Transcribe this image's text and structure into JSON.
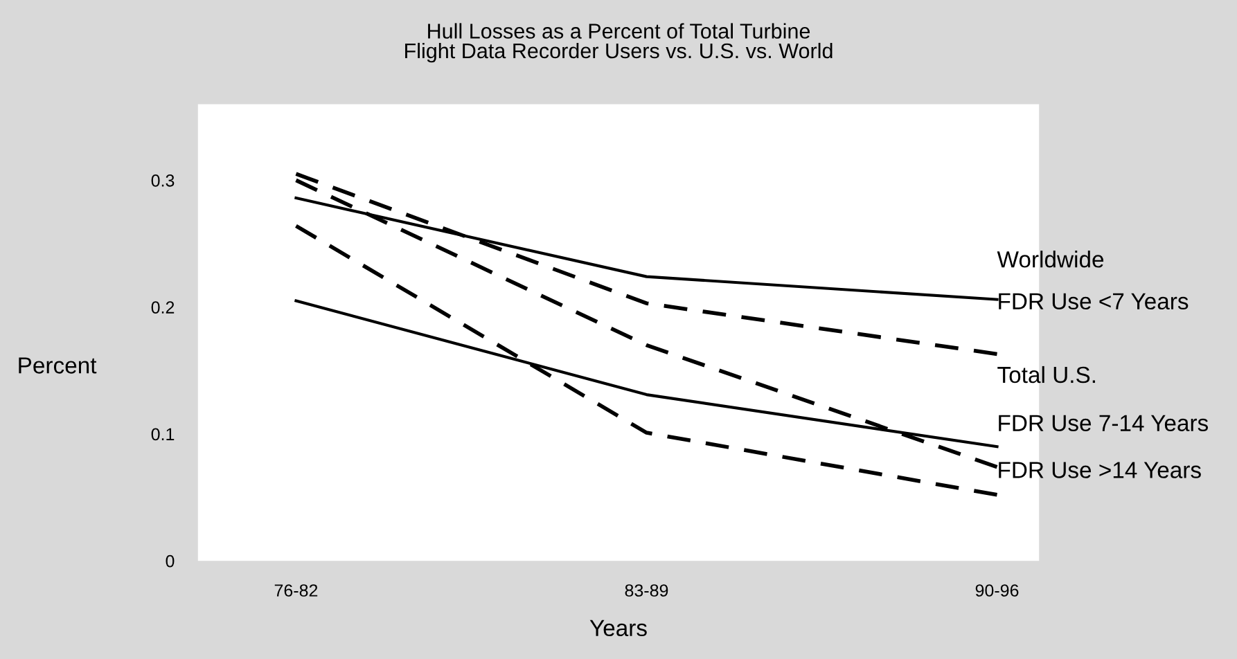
{
  "chart_data": {
    "type": "line",
    "title": "Hull Losses as a Percent of Total Turbine\nFlight Data Recorder Users vs. U.S. vs. World",
    "xlabel": "Years",
    "ylabel": "Percent",
    "categories": [
      "76-82",
      "83-89",
      "90-96"
    ],
    "ylim": [
      0,
      0.36
    ],
    "yticks": [
      0,
      0.1,
      0.2,
      0.3
    ],
    "grid": false,
    "legend": false,
    "marker": "none",
    "series": [
      {
        "name": "Worldwide",
        "color": "#000000",
        "line_style": "solid",
        "values": [
          0.286,
          0.224,
          0.206
        ]
      },
      {
        "name": "FDR Use <7 Years",
        "color": "#000000",
        "line_style": "dashed",
        "values": [
          0.305,
          0.203,
          0.163
        ]
      },
      {
        "name": "Total U.S.",
        "color": "#000000",
        "line_style": "solid",
        "values": [
          0.205,
          0.131,
          0.09
        ]
      },
      {
        "name": "FDR Use 7-14 Years",
        "color": "#000000",
        "line_style": "dashed",
        "values": [
          0.3,
          0.17,
          0.074
        ]
      },
      {
        "name": "FDR Use >14 Years",
        "color": "#000000",
        "line_style": "dashed",
        "values": [
          0.264,
          0.101,
          0.052
        ]
      }
    ]
  }
}
